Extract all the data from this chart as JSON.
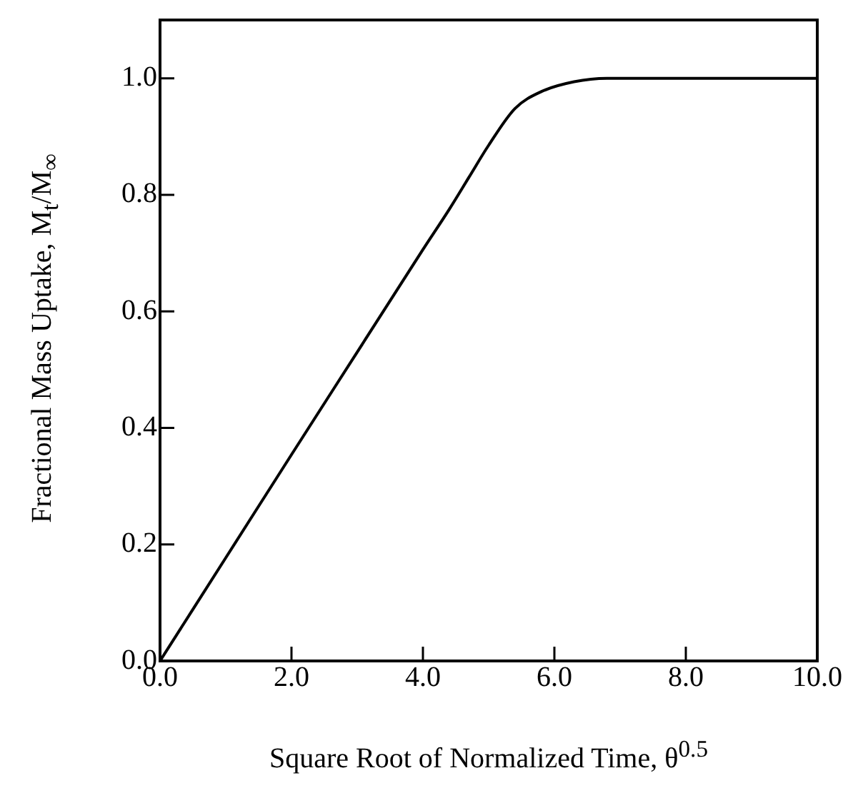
{
  "chart_data": {
    "type": "line",
    "xlabel": "Square Root of Normalized Time, θ$^{0.5}$",
    "ylabel": "Fractional Mass Uptake, M$_{t}$/M$_{∞}$",
    "x": [
      0,
      1,
      2,
      3,
      4,
      4.4,
      4.7,
      5,
      5.4,
      5.8,
      6.3,
      6.8,
      8,
      10
    ],
    "series": [
      {
        "color": "#000000",
        "values": [
          0,
          0.177,
          0.354,
          0.53,
          0.706,
          0.775,
          0.83,
          0.885,
          0.948,
          0.977,
          0.994,
          1.0,
          1.0,
          1.0
        ]
      }
    ],
    "xlim": [
      0,
      10
    ],
    "xticks": [
      {
        "value": 0,
        "label": "0.0"
      },
      {
        "value": 2,
        "label": "2.0"
      },
      {
        "value": 4,
        "label": "4.0"
      },
      {
        "value": 6,
        "label": "6.0"
      },
      {
        "value": 8,
        "label": "8.0"
      },
      {
        "value": 10,
        "label": "10.0"
      }
    ],
    "ylim": [
      0,
      1.1
    ],
    "yticks": [
      {
        "value": 0,
        "label": "0.0"
      },
      {
        "value": 0.2,
        "label": "0.2"
      },
      {
        "value": 0.4,
        "label": "0.4"
      },
      {
        "value": 0.6,
        "label": "0.6"
      },
      {
        "value": 0.8,
        "label": "0.8"
      },
      {
        "value": 1,
        "label": "1.0"
      }
    ],
    "grid": false,
    "legend": false,
    "marker": "none",
    "line_style": "solid"
  }
}
